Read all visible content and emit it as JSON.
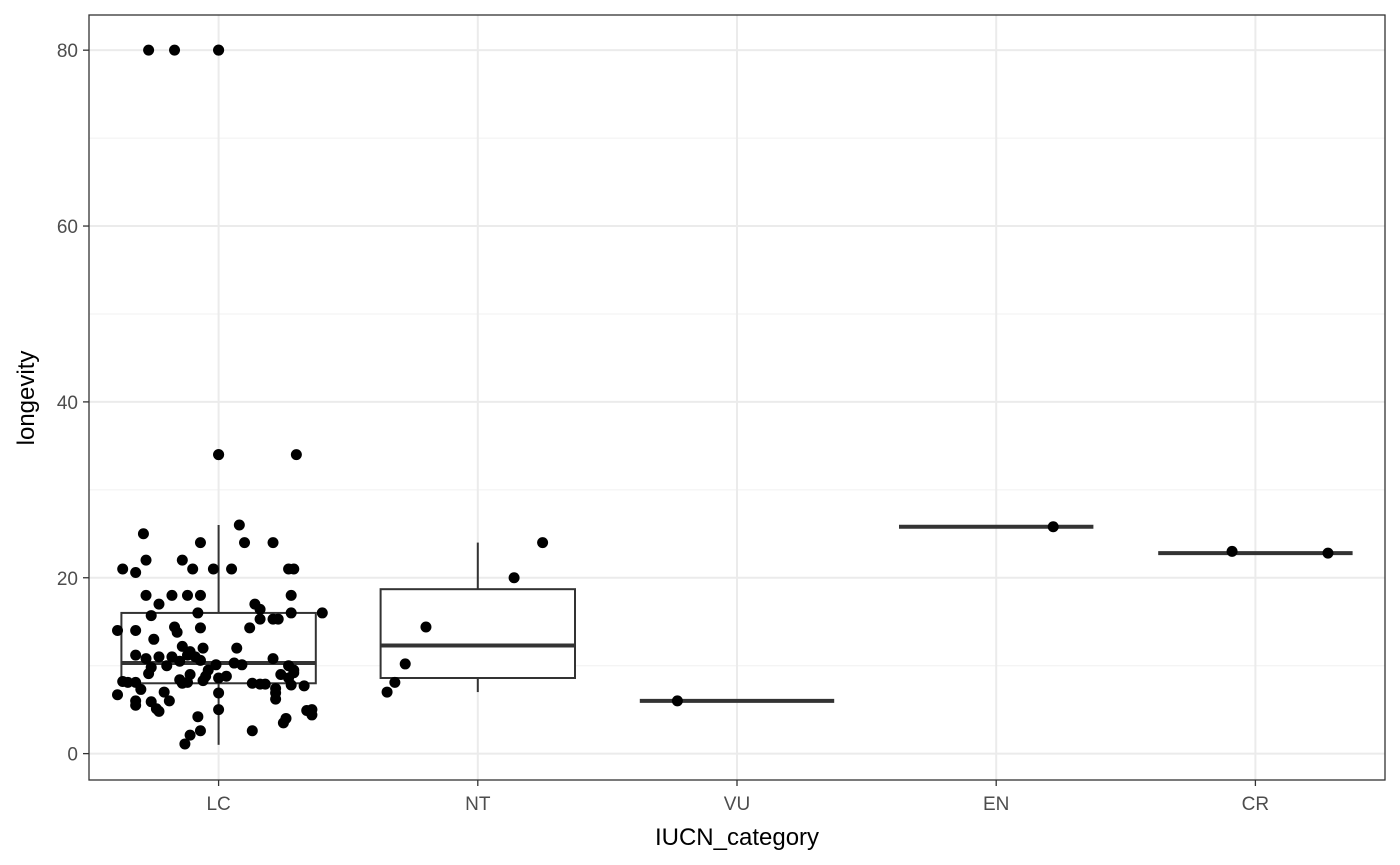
{
  "chart_data": {
    "type": "boxplot",
    "xlabel": "IUCN_category",
    "ylabel": "longevity",
    "categories": [
      "LC",
      "NT",
      "VU",
      "EN",
      "CR"
    ],
    "ylim": [
      -3,
      84
    ],
    "yticks": [
      0,
      20,
      40,
      60,
      80
    ],
    "grid": true,
    "legend": "none",
    "boxes": [
      {
        "category": "LC",
        "lower_whisker": 1,
        "q1": 8,
        "median": 10.3,
        "q3": 16,
        "upper_whisker": 26,
        "outliers": [
          34,
          80
        ]
      },
      {
        "category": "NT",
        "lower_whisker": 7,
        "q1": 8.6,
        "median": 12.3,
        "q3": 18.7,
        "upper_whisker": 24,
        "outliers": []
      },
      {
        "category": "VU",
        "lower_whisker": 6,
        "q1": 6,
        "median": 6,
        "q3": 6,
        "upper_whisker": 6,
        "outliers": []
      },
      {
        "category": "EN",
        "lower_whisker": 25.8,
        "q1": 25.8,
        "median": 25.8,
        "q3": 25.8,
        "upper_whisker": 25.8,
        "outliers": []
      },
      {
        "category": "CR",
        "lower_whisker": 22.8,
        "q1": 22.8,
        "median": 22.8,
        "q3": 22.8,
        "upper_whisker": 22.8,
        "outliers": []
      }
    ],
    "points": [
      {
        "category": "LC",
        "x_offset": -0.27,
        "y": 80
      },
      {
        "category": "LC",
        "x_offset": -0.17,
        "y": 80
      },
      {
        "category": "LC",
        "x_offset": 0.0,
        "y": 80
      },
      {
        "category": "LC",
        "x_offset": 0.0,
        "y": 34
      },
      {
        "category": "LC",
        "x_offset": 0.3,
        "y": 34
      },
      {
        "category": "LC",
        "x_offset": -0.29,
        "y": 25
      },
      {
        "category": "LC",
        "x_offset": 0.08,
        "y": 26
      },
      {
        "category": "LC",
        "x_offset": -0.07,
        "y": 24
      },
      {
        "category": "LC",
        "x_offset": 0.1,
        "y": 24
      },
      {
        "category": "LC",
        "x_offset": 0.21,
        "y": 24
      },
      {
        "category": "LC",
        "x_offset": -0.28,
        "y": 22
      },
      {
        "category": "LC",
        "x_offset": -0.14,
        "y": 22
      },
      {
        "category": "LC",
        "x_offset": -0.37,
        "y": 21
      },
      {
        "category": "LC",
        "x_offset": -0.32,
        "y": 20.6
      },
      {
        "category": "LC",
        "x_offset": -0.1,
        "y": 21
      },
      {
        "category": "LC",
        "x_offset": -0.02,
        "y": 21
      },
      {
        "category": "LC",
        "x_offset": 0.05,
        "y": 21
      },
      {
        "category": "LC",
        "x_offset": 0.27,
        "y": 21
      },
      {
        "category": "LC",
        "x_offset": 0.29,
        "y": 21
      },
      {
        "category": "LC",
        "x_offset": -0.28,
        "y": 18
      },
      {
        "category": "LC",
        "x_offset": -0.18,
        "y": 18
      },
      {
        "category": "LC",
        "x_offset": -0.12,
        "y": 18
      },
      {
        "category": "LC",
        "x_offset": -0.07,
        "y": 18
      },
      {
        "category": "LC",
        "x_offset": 0.28,
        "y": 18
      },
      {
        "category": "LC",
        "x_offset": -0.23,
        "y": 17
      },
      {
        "category": "LC",
        "x_offset": 0.14,
        "y": 17
      },
      {
        "category": "LC",
        "x_offset": 0.16,
        "y": 16.4
      },
      {
        "category": "LC",
        "x_offset": 0.4,
        "y": 16
      },
      {
        "category": "LC",
        "x_offset": 0.28,
        "y": 16
      },
      {
        "category": "LC",
        "x_offset": -0.26,
        "y": 15.7
      },
      {
        "category": "LC",
        "x_offset": -0.08,
        "y": 16
      },
      {
        "category": "LC",
        "x_offset": 0.16,
        "y": 15.3
      },
      {
        "category": "LC",
        "x_offset": 0.21,
        "y": 15.3
      },
      {
        "category": "LC",
        "x_offset": 0.23,
        "y": 15.3
      },
      {
        "category": "LC",
        "x_offset": -0.39,
        "y": 14
      },
      {
        "category": "LC",
        "x_offset": -0.32,
        "y": 14
      },
      {
        "category": "LC",
        "x_offset": -0.17,
        "y": 14.4
      },
      {
        "category": "LC",
        "x_offset": -0.16,
        "y": 13.8
      },
      {
        "category": "LC",
        "x_offset": -0.07,
        "y": 14.3
      },
      {
        "category": "LC",
        "x_offset": 0.12,
        "y": 14.3
      },
      {
        "category": "LC",
        "x_offset": -0.25,
        "y": 13
      },
      {
        "category": "LC",
        "x_offset": -0.14,
        "y": 12.2
      },
      {
        "category": "LC",
        "x_offset": -0.11,
        "y": 11.6
      },
      {
        "category": "LC",
        "x_offset": -0.06,
        "y": 12
      },
      {
        "category": "LC",
        "x_offset": 0.07,
        "y": 12
      },
      {
        "category": "LC",
        "x_offset": -0.32,
        "y": 11.2
      },
      {
        "category": "LC",
        "x_offset": -0.28,
        "y": 10.8
      },
      {
        "category": "LC",
        "x_offset": -0.23,
        "y": 11
      },
      {
        "category": "LC",
        "x_offset": -0.18,
        "y": 11
      },
      {
        "category": "LC",
        "x_offset": -0.15,
        "y": 10.5
      },
      {
        "category": "LC",
        "x_offset": -0.12,
        "y": 11.2
      },
      {
        "category": "LC",
        "x_offset": -0.09,
        "y": 11
      },
      {
        "category": "LC",
        "x_offset": -0.07,
        "y": 10.6
      },
      {
        "category": "LC",
        "x_offset": -0.01,
        "y": 10.1
      },
      {
        "category": "LC",
        "x_offset": 0.06,
        "y": 10.3
      },
      {
        "category": "LC",
        "x_offset": 0.09,
        "y": 10.1
      },
      {
        "category": "LC",
        "x_offset": 0.21,
        "y": 10.8
      },
      {
        "category": "LC",
        "x_offset": 0.27,
        "y": 10
      },
      {
        "category": "LC",
        "x_offset": 0.29,
        "y": 9.5
      },
      {
        "category": "LC",
        "x_offset": -0.26,
        "y": 9.8
      },
      {
        "category": "LC",
        "x_offset": -0.2,
        "y": 10
      },
      {
        "category": "LC",
        "x_offset": -0.04,
        "y": 9.5
      },
      {
        "category": "LC",
        "x_offset": -0.27,
        "y": 9.1
      },
      {
        "category": "LC",
        "x_offset": -0.11,
        "y": 9
      },
      {
        "category": "LC",
        "x_offset": -0.05,
        "y": 8.8
      },
      {
        "category": "LC",
        "x_offset": 0.0,
        "y": 8.6
      },
      {
        "category": "LC",
        "x_offset": 0.03,
        "y": 8.8
      },
      {
        "category": "LC",
        "x_offset": 0.24,
        "y": 9
      },
      {
        "category": "LC",
        "x_offset": 0.27,
        "y": 8.6
      },
      {
        "category": "LC",
        "x_offset": 0.29,
        "y": 9.2
      },
      {
        "category": "LC",
        "x_offset": -0.37,
        "y": 8.2
      },
      {
        "category": "LC",
        "x_offset": -0.35,
        "y": 8.1
      },
      {
        "category": "LC",
        "x_offset": -0.32,
        "y": 8.1
      },
      {
        "category": "LC",
        "x_offset": -0.15,
        "y": 8.4
      },
      {
        "category": "LC",
        "x_offset": -0.14,
        "y": 8
      },
      {
        "category": "LC",
        "x_offset": -0.12,
        "y": 8.1
      },
      {
        "category": "LC",
        "x_offset": -0.06,
        "y": 8.3
      },
      {
        "category": "LC",
        "x_offset": 0.13,
        "y": 8
      },
      {
        "category": "LC",
        "x_offset": 0.16,
        "y": 7.9
      },
      {
        "category": "LC",
        "x_offset": 0.18,
        "y": 7.9
      },
      {
        "category": "LC",
        "x_offset": 0.22,
        "y": 7.4
      },
      {
        "category": "LC",
        "x_offset": 0.28,
        "y": 7.8
      },
      {
        "category": "LC",
        "x_offset": 0.33,
        "y": 7.7
      },
      {
        "category": "LC",
        "x_offset": -0.3,
        "y": 7.3
      },
      {
        "category": "LC",
        "x_offset": -0.21,
        "y": 7
      },
      {
        "category": "LC",
        "x_offset": 0.0,
        "y": 6.9
      },
      {
        "category": "LC",
        "x_offset": 0.22,
        "y": 6.9
      },
      {
        "category": "LC",
        "x_offset": -0.39,
        "y": 6.7
      },
      {
        "category": "LC",
        "x_offset": -0.32,
        "y": 6
      },
      {
        "category": "LC",
        "x_offset": -0.26,
        "y": 5.9
      },
      {
        "category": "LC",
        "x_offset": -0.19,
        "y": 6
      },
      {
        "category": "LC",
        "x_offset": -0.32,
        "y": 5.5
      },
      {
        "category": "LC",
        "x_offset": 0.22,
        "y": 6.2
      },
      {
        "category": "LC",
        "x_offset": 0.34,
        "y": 4.9
      },
      {
        "category": "LC",
        "x_offset": 0.36,
        "y": 5
      },
      {
        "category": "LC",
        "x_offset": -0.24,
        "y": 5.1
      },
      {
        "category": "LC",
        "x_offset": -0.23,
        "y": 4.8
      },
      {
        "category": "LC",
        "x_offset": 0.0,
        "y": 5
      },
      {
        "category": "LC",
        "x_offset": 0.36,
        "y": 4.4
      },
      {
        "category": "LC",
        "x_offset": -0.08,
        "y": 4.2
      },
      {
        "category": "LC",
        "x_offset": 0.26,
        "y": 4
      },
      {
        "category": "LC",
        "x_offset": 0.25,
        "y": 3.5
      },
      {
        "category": "LC",
        "x_offset": -0.07,
        "y": 2.6
      },
      {
        "category": "LC",
        "x_offset": 0.13,
        "y": 2.6
      },
      {
        "category": "LC",
        "x_offset": -0.11,
        "y": 2.1
      },
      {
        "category": "LC",
        "x_offset": -0.13,
        "y": 1.1
      },
      {
        "category": "NT",
        "x_offset": 0.25,
        "y": 24
      },
      {
        "category": "NT",
        "x_offset": 0.14,
        "y": 20
      },
      {
        "category": "NT",
        "x_offset": -0.2,
        "y": 14.4
      },
      {
        "category": "NT",
        "x_offset": -0.28,
        "y": 10.2
      },
      {
        "category": "NT",
        "x_offset": -0.32,
        "y": 8.1
      },
      {
        "category": "NT",
        "x_offset": -0.35,
        "y": 7
      },
      {
        "category": "VU",
        "x_offset": -0.23,
        "y": 6
      },
      {
        "category": "EN",
        "x_offset": 0.22,
        "y": 25.8
      },
      {
        "category": "CR",
        "x_offset": -0.09,
        "y": 23
      },
      {
        "category": "CR",
        "x_offset": 0.28,
        "y": 22.8
      }
    ]
  }
}
